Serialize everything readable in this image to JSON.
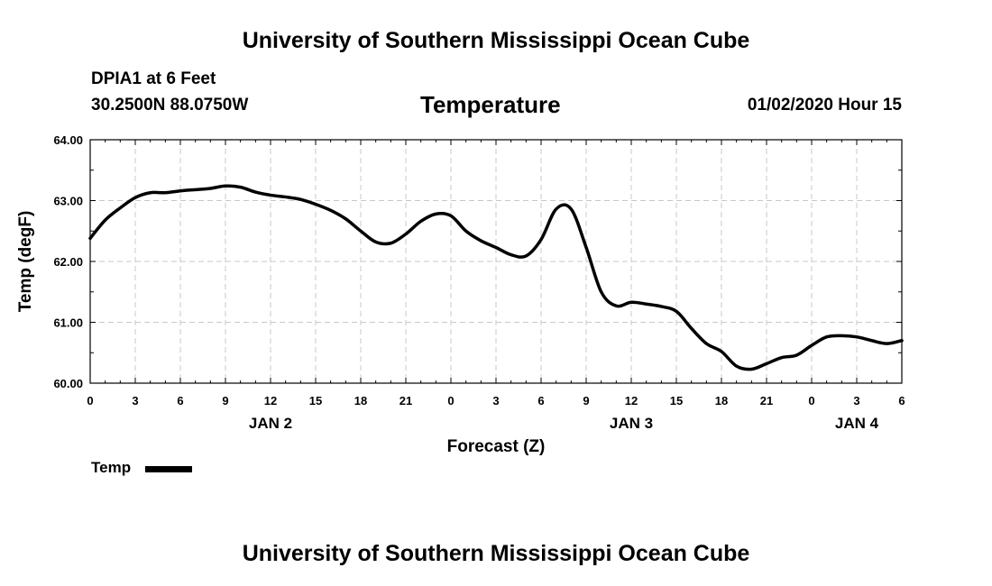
{
  "header": {
    "title_top": "University of Southern Mississippi Ocean Cube",
    "station": "DPIA1 at 6 Feet",
    "coords": "30.2500N 88.0750W",
    "parameter": "Temperature",
    "valid_time": "01/02/2020 Hour 15",
    "title_bottom": "University of Southern Mississippi Ocean Cube"
  },
  "legend": {
    "label": "Temp",
    "color": "#000000"
  },
  "chart_data": {
    "type": "line",
    "title": "Temperature",
    "xlabel": "Forecast (Z)",
    "ylabel": "Temp (degF)",
    "ylim": [
      60.0,
      64.0
    ],
    "yticks": [
      "60.00",
      "61.00",
      "62.00",
      "63.00",
      "64.00"
    ],
    "xlim": [
      0,
      54
    ],
    "xticks": [
      0,
      3,
      6,
      9,
      12,
      15,
      18,
      21,
      24,
      27,
      30,
      33,
      36,
      39,
      42,
      45,
      48,
      51,
      54
    ],
    "xtick_labels": [
      "0",
      "3",
      "6",
      "9",
      "12",
      "15",
      "18",
      "21",
      "0",
      "3",
      "6",
      "9",
      "12",
      "15",
      "18",
      "21",
      "0",
      "3",
      "6"
    ],
    "day_labels": [
      {
        "x": 12,
        "label": "JAN 2"
      },
      {
        "x": 36,
        "label": "JAN 3"
      },
      {
        "x": 51,
        "label": "JAN 4"
      }
    ],
    "grid": true,
    "series": [
      {
        "name": "Temp",
        "color": "#000000",
        "x": [
          0,
          1,
          2,
          3,
          4,
          5,
          6,
          7,
          8,
          9,
          10,
          11,
          12,
          13,
          14,
          15,
          16,
          17,
          18,
          19,
          20,
          21,
          22,
          23,
          24,
          25,
          26,
          27,
          28,
          29,
          30,
          31,
          32,
          33,
          34,
          35,
          36,
          37,
          38,
          39,
          40,
          41,
          42,
          43,
          44,
          45,
          46,
          47,
          48,
          49,
          50,
          51,
          52,
          53,
          54
        ],
        "values": [
          62.38,
          62.68,
          62.88,
          63.05,
          63.13,
          63.13,
          63.16,
          63.18,
          63.2,
          63.24,
          63.22,
          63.14,
          63.09,
          63.06,
          63.02,
          62.94,
          62.84,
          62.7,
          62.5,
          62.32,
          62.3,
          62.45,
          62.66,
          62.78,
          62.75,
          62.5,
          62.34,
          62.23,
          62.11,
          62.09,
          62.36,
          62.86,
          62.86,
          62.23,
          61.5,
          61.27,
          61.33,
          61.3,
          61.26,
          61.18,
          60.9,
          60.65,
          60.52,
          60.28,
          60.23,
          60.32,
          60.42,
          60.46,
          60.62,
          60.76,
          60.78,
          60.76,
          60.7,
          60.65,
          60.7
        ]
      }
    ]
  }
}
